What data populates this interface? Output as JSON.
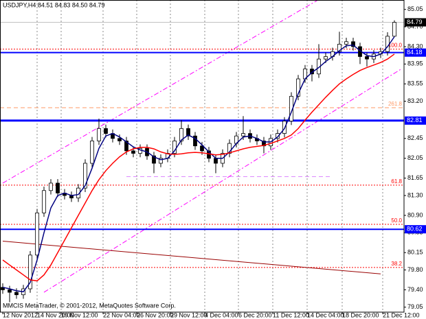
{
  "chart_data": {
    "type": "candlestick",
    "title": "USDJPY,H4 84.51 84.83 84.50 84.79",
    "footer": "MMCIS MetaTrader, © 2001-2012, MetaQuotes Software Corp.",
    "open": [
      79.45,
      79.4,
      79.35,
      79.3,
      79.42,
      80.1,
      80.95,
      81.4,
      81.55,
      81.35,
      81.3,
      81.25,
      81.45,
      81.95,
      82.4,
      82.65,
      82.55,
      82.45,
      82.4,
      82.2,
      82.15,
      82.25,
      82.1,
      81.95,
      82.05,
      82.15,
      82.4,
      82.65,
      82.5,
      82.3,
      82.2,
      82.05,
      81.95,
      82.15,
      82.35,
      82.5,
      82.55,
      82.45,
      82.4,
      82.3,
      82.45,
      82.55,
      82.8,
      83.3,
      83.65,
      83.85,
      83.75,
      84.05,
      84.1,
      84.2,
      84.35,
      84.4,
      84.3,
      84.1,
      84.05,
      84.15,
      84.2,
      84.51
    ],
    "high": [
      79.53,
      79.48,
      79.43,
      79.5,
      80.18,
      81.03,
      81.48,
      81.63,
      81.63,
      81.43,
      81.38,
      81.53,
      82.03,
      82.48,
      82.85,
      82.73,
      82.63,
      82.53,
      82.48,
      82.28,
      82.33,
      82.33,
      82.18,
      82.13,
      82.23,
      82.48,
      82.82,
      82.73,
      82.58,
      82.38,
      82.28,
      82.13,
      82.23,
      82.43,
      82.58,
      82.9,
      82.63,
      82.53,
      82.48,
      82.53,
      82.63,
      82.88,
      83.38,
      83.73,
      83.93,
      83.93,
      84.35,
      84.18,
      84.28,
      84.6,
      84.48,
      84.48,
      84.38,
      84.18,
      84.23,
      84.28,
      84.59,
      84.83
    ],
    "low": [
      79.32,
      79.15,
      79.22,
      79.22,
      79.34,
      80.02,
      80.87,
      81.32,
      81.27,
      81.22,
      81.17,
      81.17,
      81.37,
      81.87,
      82.32,
      82.47,
      82.37,
      82.32,
      82.12,
      82.07,
      82.07,
      82.02,
      81.75,
      81.87,
      81.97,
      82.07,
      82.32,
      82.42,
      82.22,
      82.12,
      81.97,
      81.75,
      81.87,
      82.07,
      82.27,
      82.42,
      82.37,
      82.32,
      82.15,
      82.22,
      82.37,
      82.47,
      82.72,
      83.22,
      83.57,
      83.6,
      83.67,
      83.97,
      84.02,
      84.12,
      84.27,
      84.22,
      83.95,
      83.9,
      83.97,
      84.07,
      84.12,
      84.5
    ],
    "close": [
      79.4,
      79.35,
      79.3,
      79.42,
      80.1,
      80.95,
      81.4,
      81.55,
      81.35,
      81.3,
      81.25,
      81.45,
      81.95,
      82.4,
      82.65,
      82.55,
      82.45,
      82.4,
      82.2,
      82.15,
      82.25,
      82.1,
      81.95,
      82.05,
      82.15,
      82.4,
      82.65,
      82.5,
      82.3,
      82.2,
      82.05,
      81.95,
      82.15,
      82.35,
      82.5,
      82.55,
      82.45,
      82.4,
      82.3,
      82.45,
      82.55,
      82.8,
      83.3,
      83.65,
      83.85,
      83.75,
      84.05,
      84.1,
      84.2,
      84.35,
      84.4,
      84.3,
      84.1,
      84.05,
      84.15,
      84.2,
      84.51,
      84.79
    ],
    "bull_color": "#ffffff",
    "bear_color": "#000000",
    "candle_color": "#000000",
    "moving_averages": [
      {
        "color": "#000080",
        "values": [
          79.45,
          79.42,
          79.38,
          79.36,
          79.55,
          80.0,
          80.55,
          81.05,
          81.3,
          81.35,
          81.3,
          81.32,
          81.5,
          81.85,
          82.25,
          82.5,
          82.55,
          82.48,
          82.38,
          82.28,
          82.22,
          82.18,
          82.08,
          82.02,
          82.05,
          82.2,
          82.42,
          82.52,
          82.45,
          82.32,
          82.18,
          82.05,
          82.05,
          82.18,
          82.35,
          82.48,
          82.5,
          82.45,
          82.38,
          82.38,
          82.48,
          82.65,
          82.98,
          83.35,
          83.65,
          83.78,
          83.88,
          84.0,
          84.1,
          84.22,
          84.32,
          84.33,
          84.22,
          84.12,
          84.1,
          84.15,
          84.3,
          84.5
        ]
      },
      {
        "color": "#ff0000",
        "values": [
          80.0,
          79.9,
          79.8,
          79.7,
          79.6,
          79.58,
          79.7,
          79.9,
          80.15,
          80.4,
          80.65,
          80.9,
          81.15,
          81.4,
          81.62,
          81.8,
          81.95,
          82.08,
          82.18,
          82.24,
          82.27,
          82.27,
          82.24,
          82.18,
          82.14,
          82.13,
          82.14,
          82.16,
          82.17,
          82.16,
          82.14,
          82.12,
          82.13,
          82.16,
          82.2,
          82.24,
          82.27,
          82.29,
          82.31,
          82.35,
          82.4,
          82.45,
          82.52,
          82.65,
          82.82,
          82.98,
          83.13,
          83.28,
          83.42,
          83.55,
          83.65,
          83.74,
          83.82,
          83.88,
          83.93,
          83.98,
          84.05,
          84.15
        ]
      }
    ],
    "fib_levels": [
      {
        "label": "100.0",
        "value": 84.25,
        "color": "#ff0000",
        "style": "dotted"
      },
      {
        "label": "261.8",
        "value": 83.07,
        "color": "#ff9966",
        "style": "dashed"
      },
      {
        "label": "61.8",
        "value": 81.51,
        "color": "#ff0000",
        "style": "dotted"
      },
      {
        "label": "50.0",
        "value": 80.72,
        "color": "#ff0000",
        "style": "dotted"
      },
      {
        "label": "38.2",
        "value": 79.85,
        "color": "#ff0000",
        "style": "dotted"
      }
    ],
    "trendlines": [
      {
        "color": "#ff00ff",
        "style": "dashdot",
        "x": [
          0,
          46
        ],
        "y": [
          81.55,
          85.25
        ]
      },
      {
        "color": "#ff00ff",
        "style": "dashdot",
        "x": [
          6,
          58
        ],
        "y": [
          79.35,
          83.85
        ]
      },
      {
        "color": "#dd88ff",
        "style": "dashed",
        "x": [
          18,
          48
        ],
        "y": [
          81.68,
          81.68
        ]
      },
      {
        "color": "#990000",
        "style": "solid",
        "x": [
          0,
          55
        ],
        "y": [
          80.38,
          79.72
        ]
      }
    ],
    "hlines": [
      {
        "value": 84.18,
        "color": "#0000ff",
        "style": "medium"
      },
      {
        "value": 82.81,
        "color": "#0000ff",
        "style": "thick"
      },
      {
        "value": 80.62,
        "color": "#0000ff",
        "style": "medium"
      }
    ],
    "bid_color": "#000000",
    "xlim": [
      -0.4,
      58.4
    ],
    "ylim": [
      78.95,
      85.24
    ],
    "xticks": [
      {
        "value": 0,
        "label": "12 Nov 2012"
      },
      {
        "value": 5,
        "label": "14 Nov 20:00"
      },
      {
        "value": 8.5,
        "label": "19 Nov 12:00"
      },
      {
        "value": 14.6,
        "label": "22 Nov 04:00"
      },
      {
        "value": 19.5,
        "label": "26 Nov 20:00"
      },
      {
        "value": 24.4,
        "label": "29 Nov 12:00"
      },
      {
        "value": 29.4,
        "label": "4 Dec 04:00"
      },
      {
        "value": 34.3,
        "label": "6 Dec 20:00"
      },
      {
        "value": 39.3,
        "label": "11 Dec 12:00"
      },
      {
        "value": 44.3,
        "label": "14 Dec 04:00"
      },
      {
        "value": 49.4,
        "label": "18 Dec 20:00"
      },
      {
        "value": 55.3,
        "label": "21 Dec 12:00"
      }
    ],
    "yticks": [
      85.05,
      {
        "value": 84.7,
        "label": "84.70"
      },
      {
        "value": 84.3,
        "label": "84.30"
      },
      83.95,
      83.55,
      {
        "value": 83.2,
        "label": "83.20"
      },
      82.45,
      82.05,
      81.65,
      {
        "value": 81.3,
        "label": "81.30"
      },
      {
        "value": 80.9,
        "label": "80.90"
      },
      80.55,
      80.15,
      {
        "value": 79.8,
        "label": "79.80"
      },
      {
        "value": 79.4,
        "label": "79.40"
      },
      79.05
    ],
    "grid": "x"
  }
}
